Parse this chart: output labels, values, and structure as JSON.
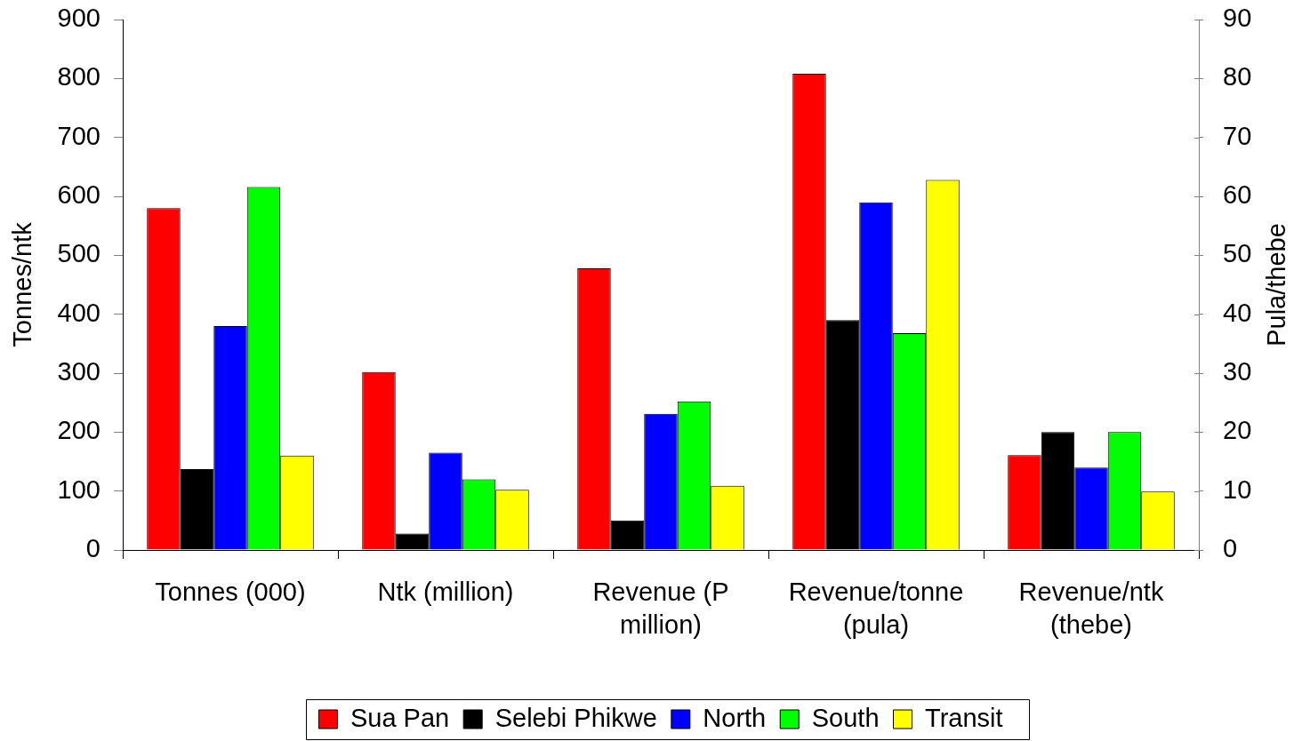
{
  "chart_data": {
    "type": "bar",
    "ylabel": "Tonnes/ntk",
    "y2label": "Pula/thebe",
    "categories": [
      "Tonnes (000)",
      "Ntk (million)",
      "Revenue (P million)",
      "Revenue/tonne (pula)",
      "Revenue/ntk (thebe)"
    ],
    "series": [
      {
        "name": "Sua Pan",
        "color": "#ff0000",
        "values": [
          580,
          302,
          478,
          808,
          161
        ]
      },
      {
        "name": "Selebi Phikwe",
        "color": "#000000",
        "values": [
          137,
          28,
          50,
          390,
          200
        ]
      },
      {
        "name": "North",
        "color": "#0000ff",
        "values": [
          380,
          165,
          231,
          590,
          140
        ]
      },
      {
        "name": "South",
        "color": "#00ff00",
        "values": [
          616,
          120,
          252,
          368,
          200
        ]
      },
      {
        "name": "Transit",
        "color": "#ffff00",
        "values": [
          160,
          102,
          109,
          628,
          99
        ]
      }
    ],
    "ylim": [
      0,
      900
    ],
    "yticks": [
      0,
      100,
      200,
      300,
      400,
      500,
      600,
      700,
      800,
      900
    ],
    "y2lim": [
      0,
      90
    ],
    "y2ticks": [
      0,
      10,
      20,
      30,
      40,
      50,
      60,
      70,
      80,
      90
    ],
    "legend": "bottom"
  }
}
